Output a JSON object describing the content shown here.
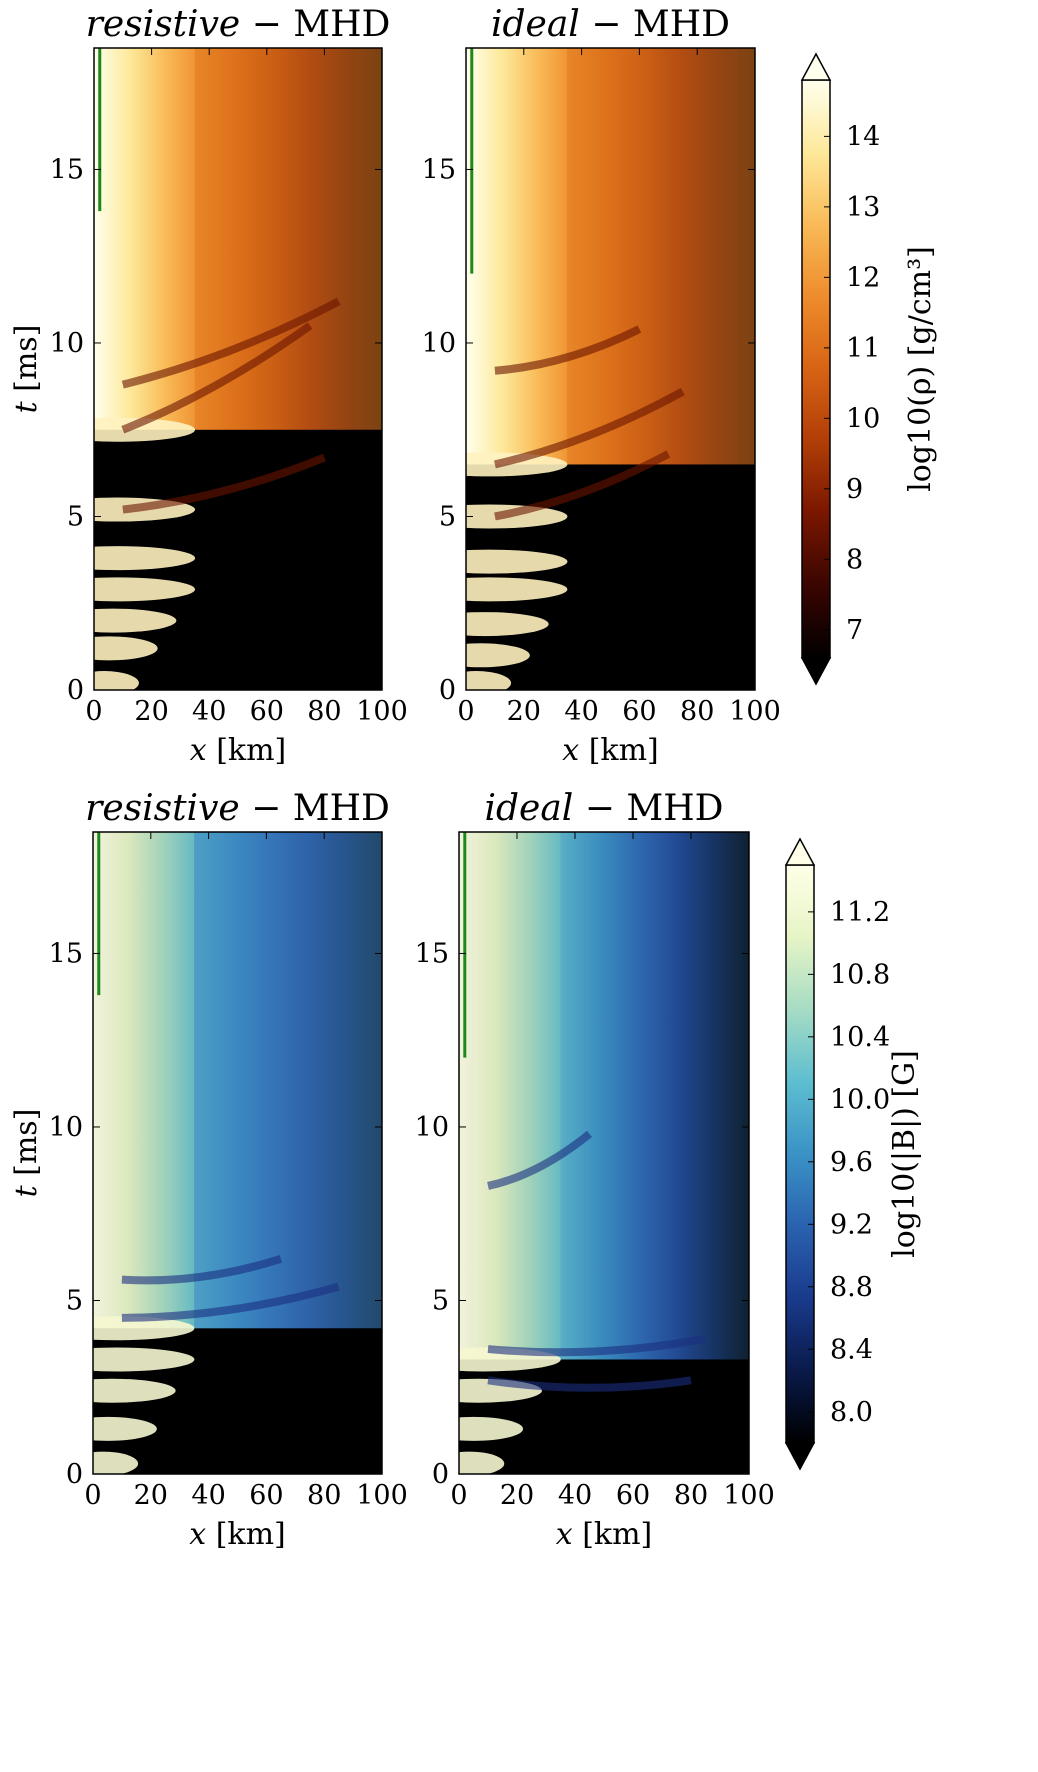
{
  "chart_data": [
    {
      "type": "heatmap",
      "title_italic": "resistive",
      "title_rest": " − MHD",
      "xlabel_var": "x",
      "xlabel_unit": " [km]",
      "ylabel_var": "t",
      "ylabel_unit": " [ms]",
      "xlim": [
        0,
        100
      ],
      "ylim": [
        0,
        18.5
      ],
      "xticks": [
        0,
        20,
        40,
        60,
        80,
        100
      ],
      "yticks": [
        0,
        5,
        10,
        15
      ],
      "quantity": "density",
      "green_line_t_end": 13.8,
      "bursts": [
        0.2,
        1.2,
        2.0,
        2.9,
        3.8,
        5.2,
        7.5
      ],
      "filaments": [
        {
          "t": 5.2,
          "len": 0.8,
          "slope": 0.5
        },
        {
          "t": 7.5,
          "len": 0.75,
          "slope": 1.0
        },
        {
          "t": 8.8,
          "len": 0.85,
          "slope": 0.8
        }
      ]
    },
    {
      "type": "heatmap",
      "title_italic": "ideal",
      "title_rest": " − MHD",
      "xlabel_var": "x",
      "xlabel_unit": " [km]",
      "ylabel_var": "",
      "ylabel_unit": "",
      "xlim": [
        0,
        100
      ],
      "ylim": [
        0,
        18.5
      ],
      "xticks": [
        0,
        20,
        40,
        60,
        80,
        100
      ],
      "yticks": [
        0,
        5,
        10,
        15
      ],
      "quantity": "density",
      "green_line_t_end": 12.0,
      "bursts": [
        0.2,
        1.0,
        1.9,
        2.9,
        3.7,
        5.0,
        6.5
      ],
      "filaments": [
        {
          "t": 5.0,
          "len": 0.7,
          "slope": 0.6
        },
        {
          "t": 6.5,
          "len": 0.75,
          "slope": 0.7
        },
        {
          "t": 9.2,
          "len": 0.6,
          "slope": 0.4
        }
      ],
      "colorbar": {
        "label": "log10(ρ) [g/cm³]",
        "ticks": [
          7,
          8,
          9,
          10,
          11,
          12,
          13,
          14
        ],
        "range": [
          6.6,
          14.8
        ],
        "colors": [
          "#000000",
          "#3a0500",
          "#7a1600",
          "#b03e06",
          "#d76414",
          "#ee8c2c",
          "#f9ba57",
          "#fde99a",
          "#ffffee"
        ]
      }
    },
    {
      "type": "heatmap",
      "title_italic": "resistive",
      "title_rest": " − MHD",
      "xlabel_var": "x",
      "xlabel_unit": " [km]",
      "ylabel_var": "t",
      "ylabel_unit": " [ms]",
      "xlim": [
        0,
        100
      ],
      "ylim": [
        0,
        18.5
      ],
      "xticks": [
        0,
        20,
        40,
        60,
        80,
        100
      ],
      "yticks": [
        0,
        5,
        10,
        15
      ],
      "quantity": "magnetic",
      "green_line_t_end": 13.8,
      "bursts": [
        0.3,
        1.3,
        2.4,
        3.3,
        4.2
      ],
      "filaments": [
        {
          "t": 4.5,
          "len": 0.85,
          "slope": 0.3
        },
        {
          "t": 5.6,
          "len": 0.65,
          "slope": 0.2
        }
      ]
    },
    {
      "type": "heatmap",
      "title_italic": "ideal",
      "title_rest": " − MHD",
      "xlabel_var": "x",
      "xlabel_unit": " [km]",
      "ylabel_var": "",
      "ylabel_unit": "",
      "xlim": [
        0,
        100
      ],
      "ylim": [
        0,
        18.5
      ],
      "xticks": [
        0,
        20,
        40,
        60,
        80,
        100
      ],
      "yticks": [
        0,
        5,
        10,
        15
      ],
      "quantity": "magnetic",
      "green_line_t_end": 12.0,
      "bursts": [
        0.3,
        1.3,
        2.4,
        3.3
      ],
      "filaments": [
        {
          "t": 2.7,
          "len": 0.8,
          "slope": 0.0
        },
        {
          "t": 3.6,
          "len": 0.85,
          "slope": 0.1
        },
        {
          "t": 8.3,
          "len": 0.45,
          "slope": 0.5
        }
      ],
      "colorbar": {
        "label": "log10(|B|) [G]",
        "ticks": [
          "8.0",
          "8.4",
          "8.8",
          "9.2",
          "9.6",
          "10.0",
          "10.4",
          "10.8",
          "11.2"
        ],
        "range": [
          7.8,
          11.5
        ],
        "colors": [
          "#000000",
          "#0a1a4a",
          "#1a3a8c",
          "#2a62b0",
          "#3a92c6",
          "#5dbed0",
          "#a6dcc4",
          "#e6f4c6",
          "#ffffe8"
        ]
      }
    }
  ],
  "colors": {
    "green_line": "#1a8a1a",
    "frame": "#000000"
  }
}
